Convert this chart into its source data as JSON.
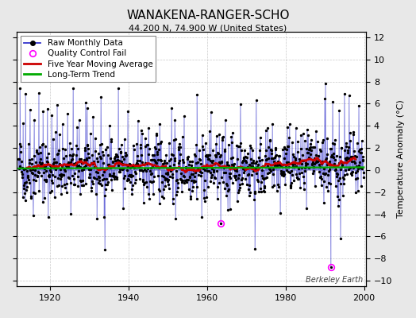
{
  "title": "WANAKENA-RANGER-SCHO",
  "subtitle": "44.200 N, 74.900 W (United States)",
  "right_ylabel": "Temperature Anomaly (°C)",
  "year_start": 1912,
  "year_end": 1999,
  "ylim": [
    -10.5,
    12.5
  ],
  "yticks": [
    -10,
    -8,
    -6,
    -4,
    -2,
    0,
    2,
    4,
    6,
    8,
    10,
    12
  ],
  "xticks": [
    1920,
    1940,
    1960,
    1980,
    2000
  ],
  "line_color": "#3333cc",
  "dot_color": "#000000",
  "ma_color": "#cc0000",
  "trend_color": "#00aa00",
  "qc_color": "#ff00ff",
  "qc_points": [
    [
      1963.5,
      -4.8
    ],
    [
      1991.5,
      -8.8
    ]
  ],
  "background_color": "#e8e8e8",
  "plot_bg_color": "#ffffff",
  "watermark": "Berkeley Earth",
  "title_fontsize": 11,
  "subtitle_fontsize": 8,
  "tick_fontsize": 8,
  "legend_fontsize": 7.5,
  "seed": 42
}
